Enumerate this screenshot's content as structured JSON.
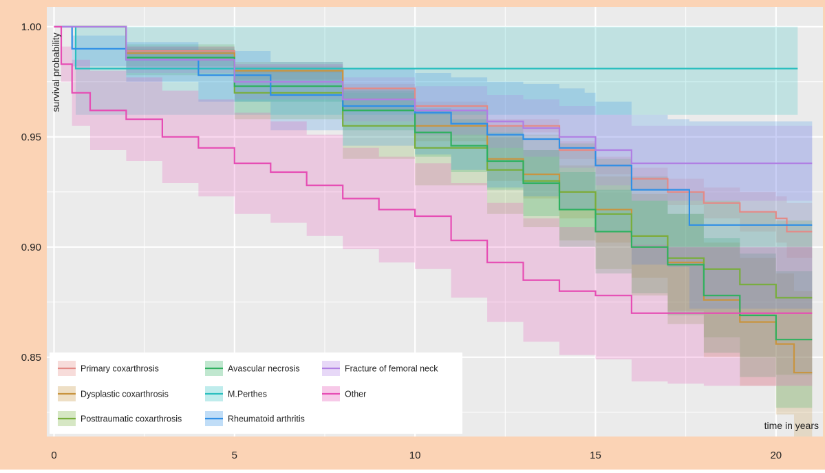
{
  "colors": {
    "frame_bg": "#fbd3b5",
    "panel_bg": "#ebebeb",
    "grid": "#ffffff"
  },
  "chart_data": {
    "type": "line",
    "subtype": "kaplan-meier step curves with confidence bands",
    "xlabel": "time in years",
    "ylabel": "survival probability",
    "xlim": [
      -0.2,
      21.3
    ],
    "ylim": [
      0.814,
      1.009
    ],
    "xticks": [
      "0",
      "5",
      "10",
      "15",
      "20"
    ],
    "yticks": [
      "0.85",
      "0.90",
      "0.95",
      "1.00"
    ],
    "grid": true,
    "legend_position": "bottom-left",
    "series": [
      {
        "name": "Primary coxarthrosis",
        "color": "#e38a86",
        "x": [
          0,
          2,
          5,
          8,
          10,
          12,
          14,
          15,
          16,
          17,
          18,
          19,
          20,
          20.3,
          21
        ],
        "y": [
          1.0,
          0.989,
          0.981,
          0.972,
          0.964,
          0.955,
          0.944,
          0.937,
          0.931,
          0.925,
          0.92,
          0.916,
          0.913,
          0.907,
          0.907
        ],
        "band_upper": [
          1.0,
          0.991,
          0.983,
          0.974,
          0.966,
          0.958,
          0.948,
          0.941,
          0.936,
          0.931,
          0.927,
          0.925,
          0.923,
          0.92,
          0.92
        ],
        "band_lower": [
          1.0,
          0.987,
          0.979,
          0.97,
          0.962,
          0.952,
          0.94,
          0.933,
          0.926,
          0.919,
          0.913,
          0.907,
          0.902,
          0.895,
          0.895
        ]
      },
      {
        "name": "Dysplastic coxarthrosis",
        "color": "#c8943f",
        "x": [
          0,
          2,
          5,
          8,
          10,
          12,
          13,
          14,
          15,
          16,
          17,
          18,
          19,
          20,
          20.5,
          21
        ],
        "y": [
          1.0,
          0.988,
          0.98,
          0.967,
          0.955,
          0.94,
          0.933,
          0.925,
          0.917,
          0.905,
          0.893,
          0.876,
          0.866,
          0.856,
          0.843,
          0.843
        ],
        "band_upper": [
          1.0,
          0.991,
          0.984,
          0.972,
          0.962,
          0.95,
          0.944,
          0.937,
          0.932,
          0.924,
          0.915,
          0.902,
          0.895,
          0.888,
          0.88,
          0.88
        ],
        "band_lower": [
          1.0,
          0.985,
          0.976,
          0.962,
          0.948,
          0.93,
          0.922,
          0.913,
          0.902,
          0.886,
          0.871,
          0.85,
          0.837,
          0.824,
          0.814,
          0.814
        ]
      },
      {
        "name": "Posttraumatic coxarthrosis",
        "color": "#78ae3c",
        "x": [
          0,
          2,
          5,
          8,
          10,
          12,
          13,
          14,
          15,
          16,
          17,
          18,
          19,
          20,
          21
        ],
        "y": [
          1.0,
          0.985,
          0.97,
          0.955,
          0.945,
          0.935,
          0.93,
          0.925,
          0.915,
          0.905,
          0.895,
          0.89,
          0.883,
          0.877,
          0.877
        ],
        "band_upper": [
          1.0,
          0.992,
          0.982,
          0.97,
          0.962,
          0.955,
          0.951,
          0.947,
          0.94,
          0.932,
          0.925,
          0.921,
          0.916,
          0.912,
          0.912
        ],
        "band_lower": [
          1.0,
          0.978,
          0.958,
          0.94,
          0.928,
          0.915,
          0.909,
          0.903,
          0.89,
          0.878,
          0.865,
          0.859,
          0.85,
          0.842,
          0.842
        ]
      },
      {
        "name": "Avascular necrosis",
        "color": "#2fb05f",
        "x": [
          0,
          2,
          5,
          8,
          10,
          11,
          12,
          13,
          14,
          15,
          16,
          17,
          18,
          19,
          20,
          21
        ],
        "y": [
          1.0,
          0.986,
          0.973,
          0.962,
          0.952,
          0.946,
          0.939,
          0.929,
          0.917,
          0.907,
          0.9,
          0.892,
          0.878,
          0.869,
          0.858,
          0.858
        ],
        "band_upper": [
          1.0,
          0.99,
          0.98,
          0.971,
          0.963,
          0.958,
          0.952,
          0.944,
          0.934,
          0.926,
          0.921,
          0.915,
          0.904,
          0.897,
          0.889,
          0.889
        ],
        "band_lower": [
          1.0,
          0.982,
          0.966,
          0.953,
          0.941,
          0.934,
          0.926,
          0.914,
          0.9,
          0.888,
          0.879,
          0.869,
          0.852,
          0.841,
          0.827,
          0.827
        ]
      },
      {
        "name": "M.Perthes",
        "color": "#2bbfbf",
        "x": [
          0,
          0.6,
          20.6
        ],
        "y": [
          1.0,
          0.981,
          0.981
        ],
        "band_upper": [
          1.0,
          1.0,
          1.0
        ],
        "band_lower": [
          1.0,
          0.96,
          0.96
        ]
      },
      {
        "name": "Rheumatoid arthritis",
        "color": "#2f8fe6",
        "x": [
          0,
          0.5,
          2,
          4,
          6,
          8,
          10,
          11,
          12,
          13,
          14,
          14.7,
          15,
          16,
          17,
          17.6,
          20.5,
          21
        ],
        "y": [
          1.0,
          0.99,
          0.985,
          0.978,
          0.969,
          0.964,
          0.961,
          0.956,
          0.951,
          0.949,
          0.945,
          0.945,
          0.937,
          0.926,
          0.926,
          0.91,
          0.91,
          0.91
        ],
        "band_upper": [
          1.0,
          0.996,
          0.993,
          0.989,
          0.984,
          0.981,
          0.979,
          0.977,
          0.975,
          0.974,
          0.972,
          0.97,
          0.966,
          0.96,
          0.958,
          0.957,
          0.957,
          0.957
        ],
        "band_lower": [
          1.0,
          0.982,
          0.975,
          0.966,
          0.953,
          0.946,
          0.942,
          0.935,
          0.927,
          0.923,
          0.917,
          0.917,
          0.907,
          0.892,
          0.891,
          0.872,
          0.872,
          0.872
        ]
      },
      {
        "name": "Fracture of femoral neck",
        "color": "#b07fe3",
        "x": [
          0,
          2,
          5,
          8,
          10,
          12,
          13,
          14,
          15,
          16,
          21
        ],
        "y": [
          1.0,
          0.985,
          0.975,
          0.967,
          0.962,
          0.957,
          0.954,
          0.95,
          0.944,
          0.938,
          0.938
        ],
        "band_upper": [
          1.0,
          0.991,
          0.983,
          0.977,
          0.973,
          0.969,
          0.967,
          0.964,
          0.96,
          0.955,
          0.955
        ],
        "band_lower": [
          1.0,
          0.979,
          0.967,
          0.957,
          0.951,
          0.945,
          0.941,
          0.936,
          0.928,
          0.921,
          0.921
        ]
      },
      {
        "name": "Other",
        "color": "#e64db4",
        "x": [
          0,
          0.2,
          0.5,
          1,
          2,
          3,
          4,
          5,
          6,
          7,
          8,
          9,
          10,
          11,
          12,
          13,
          14,
          15,
          16,
          17,
          18,
          19,
          20,
          21
        ],
        "y": [
          1.0,
          0.983,
          0.97,
          0.962,
          0.958,
          0.95,
          0.945,
          0.938,
          0.934,
          0.928,
          0.922,
          0.917,
          0.914,
          0.903,
          0.893,
          0.885,
          0.88,
          0.878,
          0.87,
          0.87,
          0.87,
          0.87,
          0.87,
          0.87
        ],
        "band_upper": [
          1.0,
          0.991,
          0.985,
          0.98,
          0.977,
          0.971,
          0.967,
          0.961,
          0.957,
          0.951,
          0.945,
          0.941,
          0.938,
          0.929,
          0.92,
          0.913,
          0.909,
          0.907,
          0.901,
          0.9,
          0.9,
          0.9,
          0.9,
          0.9
        ],
        "band_lower": [
          1.0,
          0.975,
          0.955,
          0.944,
          0.939,
          0.929,
          0.923,
          0.915,
          0.911,
          0.905,
          0.899,
          0.893,
          0.89,
          0.877,
          0.866,
          0.857,
          0.851,
          0.849,
          0.839,
          0.838,
          0.837,
          0.837,
          0.837,
          0.837
        ]
      }
    ]
  }
}
